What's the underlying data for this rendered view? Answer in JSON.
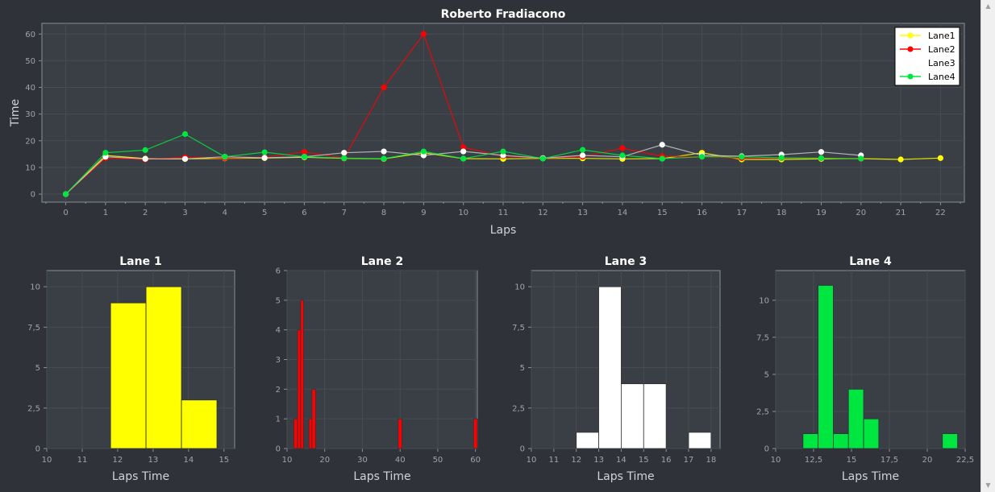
{
  "chart_data": [
    {
      "type": "line",
      "title": "Roberto Fradiacono",
      "xlabel": "Laps",
      "ylabel": "Time",
      "xlim": [
        -0.6,
        22.6
      ],
      "ylim": [
        -3,
        64
      ],
      "xticks": [
        0,
        1,
        2,
        3,
        4,
        5,
        6,
        7,
        8,
        9,
        10,
        11,
        12,
        13,
        14,
        15,
        16,
        17,
        18,
        19,
        20,
        21,
        22
      ],
      "yticks": [
        0,
        10,
        20,
        30,
        40,
        50,
        60
      ],
      "grid": true,
      "legend": "top-right",
      "series": [
        {
          "name": "Lane1",
          "color": "#ffff00",
          "x": [
            0,
            1,
            2,
            3,
            4,
            5,
            6,
            7,
            8,
            9,
            10,
            11,
            12,
            13,
            14,
            15,
            16,
            17,
            18,
            19,
            20,
            21,
            22
          ],
          "y": [
            0,
            14.5,
            13.3,
            13.2,
            13.4,
            13.5,
            13.8,
            13.4,
            13.2,
            15.5,
            13.3,
            13.2,
            13.4,
            13.4,
            13.2,
            13.3,
            15.5,
            13.0,
            13.0,
            13.2,
            13.3,
            13.0,
            13.5
          ]
        },
        {
          "name": "Lane2",
          "color": "#ff0000",
          "x": [
            0,
            1,
            2,
            3,
            4,
            5,
            6,
            7,
            8,
            9,
            10,
            11,
            12,
            13,
            14,
            15,
            16,
            17,
            18,
            19,
            20
          ],
          "y": [
            0,
            13.5,
            13.0,
            13.8,
            13.5,
            13.8,
            15.8,
            13.5,
            40.0,
            60.0,
            17.5,
            14.2,
            13.5,
            14.0,
            17.2,
            14.2,
            14.0,
            13.5,
            13.5,
            13.5,
            13.2
          ]
        },
        {
          "name": "Lane3",
          "color": "#ffffff",
          "x": [
            0,
            1,
            2,
            3,
            4,
            5,
            6,
            7,
            8,
            9,
            10,
            11,
            12,
            13,
            14,
            15,
            16,
            17,
            18,
            19,
            20
          ],
          "y": [
            0,
            14.0,
            13.2,
            13.2,
            14.0,
            13.6,
            14.0,
            15.5,
            16.0,
            14.5,
            16.0,
            14.5,
            13.5,
            14.5,
            14.0,
            18.5,
            14.5,
            14.2,
            14.8,
            15.8,
            14.5
          ]
        },
        {
          "name": "Lane4",
          "color": "#00e640",
          "x": [
            0,
            1,
            2,
            3,
            4,
            5,
            6,
            7,
            8,
            9,
            10,
            11,
            12,
            13,
            14,
            15,
            16,
            17,
            18,
            19,
            20
          ],
          "y": [
            0,
            15.5,
            16.5,
            22.5,
            14.0,
            15.7,
            14.0,
            13.5,
            13.3,
            16.0,
            13.3,
            16.0,
            13.3,
            16.6,
            14.5,
            13.3,
            14.0,
            14.0,
            13.6,
            13.5,
            13.3
          ]
        }
      ]
    },
    {
      "type": "bar",
      "title": "Lane 1",
      "xlabel": "Laps Time",
      "ylabel": "",
      "color": "#ffff00",
      "xlim": [
        10,
        15.3
      ],
      "ylim": [
        0,
        11
      ],
      "xticks": [
        10,
        11,
        12,
        13,
        14,
        15
      ],
      "xtick_labels": [
        "10",
        "11",
        "12",
        "13",
        "14",
        "15"
      ],
      "yticks": [
        0,
        2.5,
        5,
        7.5,
        10
      ],
      "ytick_labels": [
        "0",
        "2,5",
        "5",
        "7,5",
        "10"
      ],
      "bins": [
        {
          "x0": 11.8,
          "x1": 12.8,
          "count": 9
        },
        {
          "x0": 12.8,
          "x1": 13.8,
          "count": 10
        },
        {
          "x0": 13.8,
          "x1": 14.8,
          "count": 3
        }
      ]
    },
    {
      "type": "bar",
      "title": "Lane 2",
      "xlabel": "Laps Time",
      "ylabel": "",
      "color": "#ff0000",
      "xlim": [
        10,
        60.5
      ],
      "ylim": [
        0,
        6
      ],
      "xticks": [
        10,
        20,
        30,
        40,
        50,
        60
      ],
      "xtick_labels": [
        "10",
        "20",
        "30",
        "40",
        "50",
        "60"
      ],
      "yticks": [
        0,
        1,
        2,
        3,
        4,
        5,
        6
      ],
      "ytick_labels": [
        "0",
        "1",
        "2",
        "3",
        "4",
        "5",
        "6"
      ],
      "bins": [
        {
          "x0": 11.8,
          "x1": 12.8,
          "count": 1
        },
        {
          "x0": 12.8,
          "x1": 13.6,
          "count": 4
        },
        {
          "x0": 13.6,
          "x1": 14.4,
          "count": 5
        },
        {
          "x0": 15.8,
          "x1": 16.6,
          "count": 1
        },
        {
          "x0": 16.6,
          "x1": 17.6,
          "count": 2
        },
        {
          "x0": 39.5,
          "x1": 40.5,
          "count": 1
        },
        {
          "x0": 59.5,
          "x1": 60.5,
          "count": 1
        }
      ]
    },
    {
      "type": "bar",
      "title": "Lane 3",
      "xlabel": "Laps Time",
      "ylabel": "",
      "color": "#ffffff",
      "xlim": [
        10,
        18.4
      ],
      "ylim": [
        0,
        11
      ],
      "xticks": [
        10,
        11,
        12,
        13,
        14,
        15,
        16,
        17,
        18
      ],
      "xtick_labels": [
        "10",
        "11",
        "12",
        "13",
        "14",
        "15",
        "16",
        "17",
        "18"
      ],
      "yticks": [
        0,
        2.5,
        5,
        7.5,
        10
      ],
      "ytick_labels": [
        "0",
        "2,5",
        "5",
        "7,5",
        "10"
      ],
      "bins": [
        {
          "x0": 12,
          "x1": 13,
          "count": 1
        },
        {
          "x0": 13,
          "x1": 14,
          "count": 10
        },
        {
          "x0": 14,
          "x1": 15,
          "count": 4
        },
        {
          "x0": 15,
          "x1": 16,
          "count": 4
        },
        {
          "x0": 17,
          "x1": 18,
          "count": 1
        }
      ]
    },
    {
      "type": "bar",
      "title": "Lane 4",
      "xlabel": "Laps Time",
      "ylabel": "",
      "color": "#00e640",
      "xlim": [
        10,
        22.5
      ],
      "ylim": [
        0,
        12
      ],
      "xticks": [
        10,
        12.5,
        15,
        17.5,
        20,
        22.5
      ],
      "xtick_labels": [
        "10",
        "12,5",
        "15",
        "17,5",
        "20",
        "22,5"
      ],
      "yticks": [
        0,
        2.5,
        5,
        7.5,
        10
      ],
      "ytick_labels": [
        "0",
        "2,5",
        "5",
        "7,5",
        "10"
      ],
      "bins": [
        {
          "x0": 11.8,
          "x1": 12.8,
          "count": 1
        },
        {
          "x0": 12.8,
          "x1": 13.8,
          "count": 11
        },
        {
          "x0": 13.8,
          "x1": 14.8,
          "count": 1
        },
        {
          "x0": 14.8,
          "x1": 15.8,
          "count": 4
        },
        {
          "x0": 15.8,
          "x1": 16.8,
          "count": 2
        },
        {
          "x0": 21,
          "x1": 22,
          "count": 1
        }
      ]
    }
  ],
  "style": {
    "background": "#2f3339",
    "plot_background": "#3a3f46",
    "axis_color": "#8a8f96",
    "grid_color": "#474c53",
    "text_color": "#ffffff",
    "tick_color": "#a0a4aa"
  },
  "scrollbar": {
    "up_icon": "arrow-up-icon",
    "down_icon": "arrow-down-icon"
  }
}
